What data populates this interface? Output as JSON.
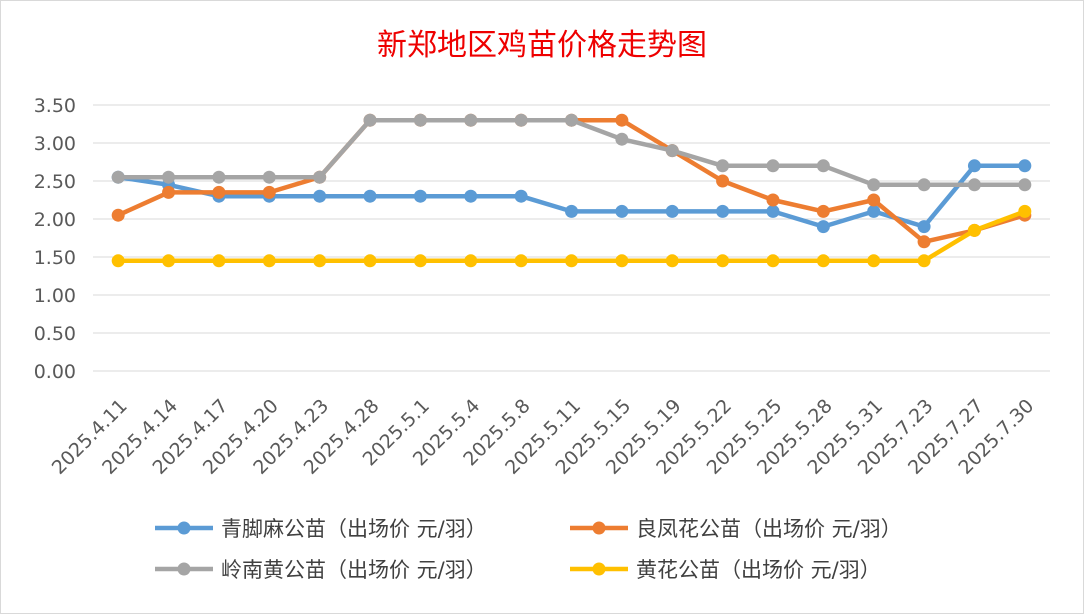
{
  "chart_data": {
    "type": "line",
    "title": "新郑地区鸡苗价格走势图",
    "categories": [
      "2025.4.11",
      "2025.4.14",
      "2025.4.17",
      "2025.4.20",
      "2025.4.23",
      "2025.4.28",
      "2025.5.1",
      "2025.5.4",
      "2025.5.8",
      "2025.5.11",
      "2025.5.15",
      "2025.5.19",
      "2025.5.22",
      "2025.5.25",
      "2025.5.28",
      "2025.5.31",
      "2025.7.23",
      "2025.7.27",
      "2025.7.30"
    ],
    "y_ticks": [
      "0.00",
      "0.50",
      "1.00",
      "1.50",
      "2.00",
      "2.50",
      "3.00",
      "3.50"
    ],
    "ylim": [
      0,
      3.5
    ],
    "grid": "horizontal",
    "legend_position": "bottom",
    "series": [
      {
        "name": "青脚麻公苗（出场价 元/羽）",
        "color": "#5b9bd5",
        "values": [
          2.55,
          2.45,
          2.3,
          2.3,
          2.3,
          2.3,
          2.3,
          2.3,
          2.3,
          2.1,
          2.1,
          2.1,
          2.1,
          2.1,
          1.9,
          2.1,
          1.9,
          2.7,
          2.7
        ]
      },
      {
        "name": "良凤花公苗（出场价 元/羽）",
        "color": "#ed7d31",
        "values": [
          2.05,
          2.35,
          2.35,
          2.35,
          2.55,
          3.3,
          3.3,
          3.3,
          3.3,
          3.3,
          3.3,
          2.9,
          2.5,
          2.25,
          2.1,
          2.25,
          1.7,
          1.85,
          2.05
        ]
      },
      {
        "name": "岭南黄公苗（出场价 元/羽）",
        "color": "#a5a5a5",
        "values": [
          2.55,
          2.55,
          2.55,
          2.55,
          2.55,
          3.3,
          3.3,
          3.3,
          3.3,
          3.3,
          3.05,
          2.9,
          2.7,
          2.7,
          2.7,
          2.45,
          2.45,
          2.45,
          2.45
        ]
      },
      {
        "name": "黄花公苗（出场价 元/羽）",
        "color": "#ffc000",
        "values": [
          1.45,
          1.45,
          1.45,
          1.45,
          1.45,
          1.45,
          1.45,
          1.45,
          1.45,
          1.45,
          1.45,
          1.45,
          1.45,
          1.45,
          1.45,
          1.45,
          1.45,
          1.85,
          2.1
        ]
      }
    ]
  }
}
